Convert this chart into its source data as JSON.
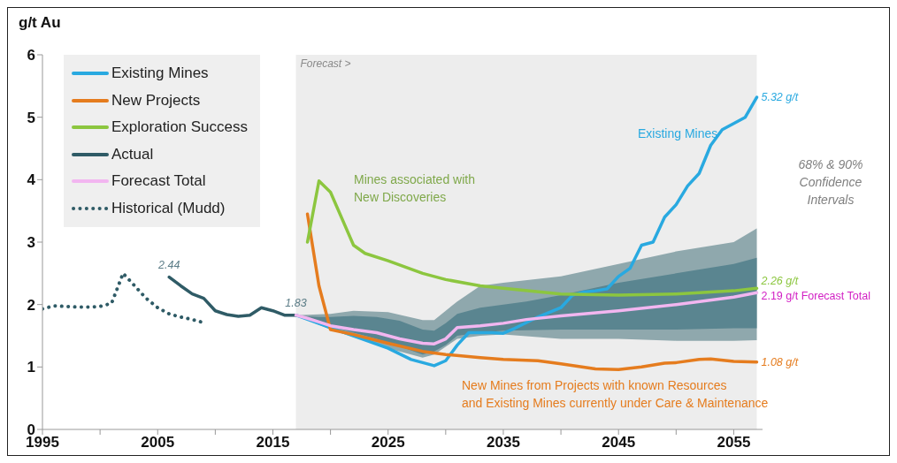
{
  "chart_data": {
    "type": "line",
    "ylabel": "g/t Au",
    "xlim": [
      1995,
      2057.5
    ],
    "xticks": [
      1995,
      {
        "value": 2000,
        "label": null
      },
      2005,
      {
        "value": 2010,
        "label": null
      },
      2015,
      {
        "value": 2020,
        "label": null
      },
      2025,
      {
        "value": 2030,
        "label": null
      },
      2035,
      {
        "value": 2040,
        "label": null
      },
      2045,
      {
        "value": 2050,
        "label": null
      },
      2055
    ],
    "ylim": [
      0,
      6
    ],
    "yticks": [
      0,
      1,
      2,
      3,
      4,
      5,
      6
    ],
    "legend": "top left",
    "marker": "none",
    "series": [
      {
        "type": "area",
        "color": "#8fa8ad",
        "x": [
          2017,
          2020,
          2022,
          2025,
          2028,
          2029,
          2031,
          2033,
          2035,
          2040,
          2045,
          2050,
          2055,
          2057
        ],
        "values": [
          null,
          null,
          null,
          null,
          null,
          null,
          null,
          null,
          null,
          null,
          null,
          null,
          null,
          null
        ],
        "lower": [
          1.83,
          1.6,
          1.48,
          1.3,
          1.15,
          1.2,
          1.45,
          1.5,
          1.52,
          1.45,
          1.45,
          1.42,
          1.42,
          1.43
        ],
        "upper": [
          1.83,
          1.85,
          1.9,
          1.88,
          1.75,
          1.75,
          2.05,
          2.3,
          2.35,
          2.45,
          2.65,
          2.85,
          3.0,
          3.22
        ]
      },
      {
        "name": "Existing Mines",
        "color": "#29a9e0",
        "x": [
          2017,
          2020,
          2025,
          2027,
          2029,
          2030,
          2031,
          2032,
          2034,
          2035,
          2036,
          2038,
          2040,
          2041,
          2042,
          2043,
          2044,
          2045,
          2046,
          2047,
          2048,
          2049,
          2050,
          2051,
          2052,
          2053,
          2054,
          2055,
          2056,
          2057
        ],
        "values": [
          1.83,
          1.63,
          1.3,
          1.12,
          1.02,
          1.1,
          1.35,
          1.55,
          1.55,
          1.54,
          1.62,
          1.8,
          1.95,
          2.15,
          2.2,
          2.22,
          2.25,
          2.45,
          2.58,
          2.95,
          3.0,
          3.4,
          3.6,
          3.9,
          4.1,
          4.55,
          4.8,
          4.9,
          5.0,
          5.32
        ]
      },
      {
        "name": "New Projects",
        "color": "#e57c1e",
        "x": [
          2018,
          2019,
          2020,
          2022,
          2025,
          2028,
          2030,
          2033,
          2035,
          2038,
          2040,
          2043,
          2045,
          2047,
          2049,
          2050,
          2052,
          2053,
          2055,
          2057
        ],
        "values": [
          3.45,
          2.3,
          1.6,
          1.52,
          1.38,
          1.25,
          1.2,
          1.15,
          1.12,
          1.1,
          1.05,
          0.97,
          0.96,
          1.0,
          1.06,
          1.07,
          1.12,
          1.13,
          1.09,
          1.08
        ]
      },
      {
        "name": "Exploration Success",
        "color": "#8cc63f",
        "x": [
          2018,
          2019,
          2020,
          2022,
          2023,
          2025,
          2028,
          2030,
          2033,
          2035,
          2040,
          2045,
          2050,
          2055,
          2057
        ],
        "values": [
          3.0,
          3.98,
          3.8,
          2.95,
          2.82,
          2.7,
          2.5,
          2.4,
          2.3,
          2.26,
          2.17,
          2.15,
          2.17,
          2.22,
          2.26
        ]
      },
      {
        "name": "Actual",
        "color": "#2f5b66",
        "x": [
          2006,
          2007,
          2008,
          2009,
          2010,
          2011,
          2012,
          2013,
          2014,
          2015,
          2016,
          2017
        ],
        "values": [
          2.44,
          2.3,
          2.17,
          2.1,
          1.9,
          1.84,
          1.81,
          1.83,
          1.95,
          1.9,
          1.83,
          1.83
        ]
      },
      {
        "name": "Forecast Total",
        "color": "#f2b6f0",
        "x": [
          2017,
          2018,
          2019,
          2020,
          2022,
          2024,
          2026,
          2028,
          2029,
          2030,
          2031,
          2033,
          2035,
          2037,
          2040,
          2045,
          2050,
          2055,
          2057
        ],
        "values": [
          1.83,
          1.78,
          1.72,
          1.66,
          1.6,
          1.55,
          1.45,
          1.38,
          1.37,
          1.45,
          1.63,
          1.66,
          1.7,
          1.76,
          1.82,
          1.9,
          2.0,
          2.12,
          2.19
        ],
        "lower": [
          1.83,
          1.75,
          1.7,
          1.65,
          1.55,
          1.45,
          1.33,
          1.2,
          1.25,
          1.35,
          1.5,
          1.55,
          1.58,
          1.59,
          1.6,
          1.6,
          1.6,
          1.62,
          1.62
        ],
        "upper": [
          1.83,
          1.81,
          1.8,
          1.8,
          1.82,
          1.8,
          1.74,
          1.6,
          1.58,
          1.7,
          1.85,
          1.95,
          2.0,
          2.05,
          2.15,
          2.35,
          2.5,
          2.65,
          2.75
        ]
      },
      {
        "name": "Historical (Mudd)",
        "color": "#2f5b66",
        "line_style": "dotted",
        "x": [
          1995,
          1996,
          1997,
          1998,
          1999,
          2000,
          2001,
          2002,
          2003,
          2004,
          2005,
          2006,
          2007,
          2008,
          2009
        ],
        "values": [
          1.93,
          1.98,
          1.97,
          1.96,
          1.96,
          1.97,
          2.02,
          2.5,
          2.3,
          2.1,
          1.95,
          1.85,
          1.8,
          1.76,
          1.71
        ]
      }
    ],
    "bands": [
      {
        "axis": "x",
        "from": 2017,
        "to": 2057,
        "label": "Forecast >",
        "color": "#ededed"
      }
    ],
    "annotations": [
      {
        "text": "2.44",
        "x": 2006,
        "y": 2.44
      },
      {
        "text": "1.83",
        "x": 2017,
        "y": 1.83
      },
      {
        "text": "5.32 g/t",
        "x": 2057,
        "y": 5.32
      },
      {
        "text": "2.26 g/t",
        "x": 2057,
        "y": 2.26
      },
      {
        "text": "2.19 g/t Forecast Total",
        "x": 2057,
        "y": 2.19
      },
      {
        "text": "1.08 g/t",
        "x": 2057,
        "y": 1.08
      },
      "Existing Mines",
      "Mines associated with\nNew Discoveries",
      "New Mines from Projects with known Resources\nand Existing Mines currently under Care & Maintenance",
      "68% & 90%\nConfidence\nIntervals"
    ]
  }
}
